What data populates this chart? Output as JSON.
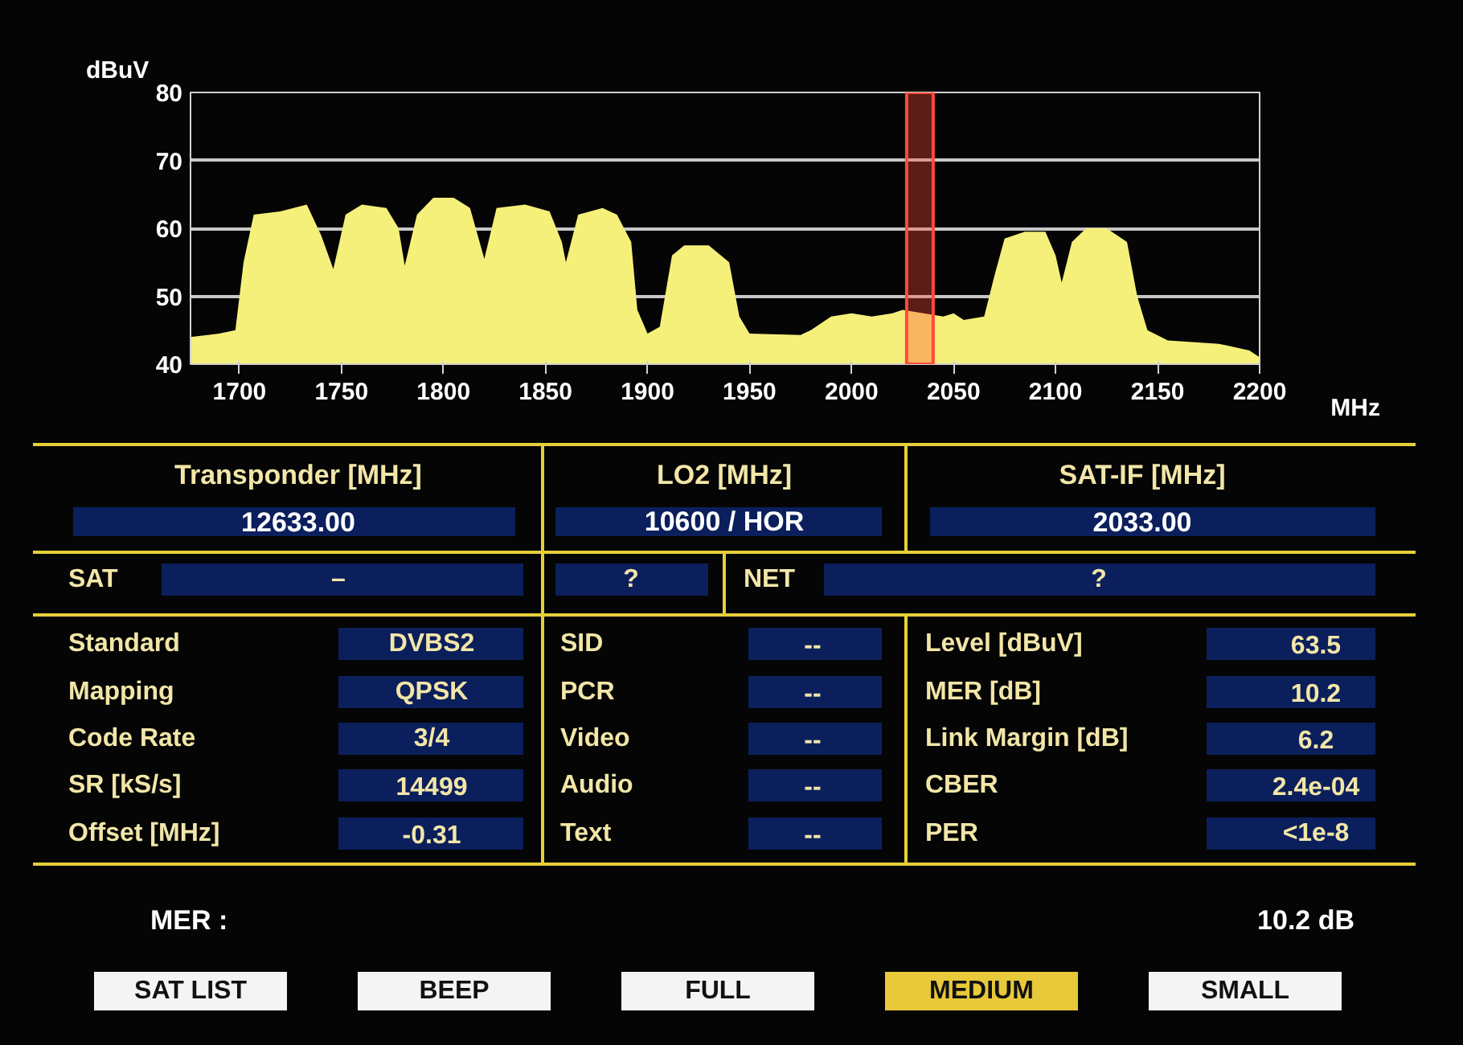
{
  "chart_data": [
    {
      "type": "area",
      "ylabel": "dBuV",
      "xlabel": "MHz",
      "x": [
        1676,
        1690,
        1698,
        1702,
        1707,
        1720,
        1733,
        1740,
        1746,
        1752,
        1760,
        1772,
        1778,
        1781,
        1787,
        1795,
        1805,
        1813,
        1820,
        1826,
        1840,
        1852,
        1858,
        1860,
        1866,
        1878,
        1885,
        1892,
        1895,
        1900,
        1906,
        1912,
        1918,
        1930,
        1940,
        1945,
        1950,
        1975,
        1980,
        1990,
        2000,
        2010,
        2020,
        2025,
        2045,
        2050,
        2055,
        2065,
        2070,
        2075,
        2085,
        2095,
        2100,
        2103,
        2108,
        2115,
        2125,
        2135,
        2140,
        2145,
        2155,
        2180,
        2195,
        2200
      ],
      "values": [
        44,
        44.5,
        45,
        55,
        62,
        62.5,
        63.5,
        59,
        54,
        62,
        63.5,
        63,
        60,
        54.5,
        62,
        64.5,
        64.5,
        63,
        55.5,
        63,
        63.5,
        62.5,
        58,
        55,
        62,
        63,
        62,
        58,
        48,
        44.5,
        45.5,
        56,
        57.5,
        57.5,
        55,
        47,
        44.5,
        44.3,
        45,
        47,
        47.5,
        47,
        47.5,
        48,
        47,
        47.5,
        46.5,
        47,
        53,
        58.5,
        59.5,
        59.5,
        56,
        52,
        58,
        60,
        60,
        58,
        50,
        45,
        43.5,
        43,
        42,
        41
      ],
      "color": "#f5f07a",
      "xlim": [
        1676,
        2200
      ],
      "ylim": [
        40,
        80
      ],
      "xticks": [
        1700,
        1750,
        1800,
        1850,
        1900,
        1950,
        2000,
        2050,
        2100,
        2150,
        2200
      ],
      "yticks": [
        40,
        50,
        60,
        70,
        80
      ],
      "grid": "y",
      "bands": [
        {
          "axis": "x",
          "from": 2027,
          "to": 2040,
          "color": "#ff4a3a"
        }
      ]
    },
    {
      "type": "other",
      "annotations": [
        "Transponder [MHz]",
        "12633.00",
        "LO2 [MHz]",
        "10600 / HOR",
        "SAT-IF [MHz]",
        "2033.00",
        "SAT",
        "–",
        "?",
        "NET",
        "?",
        "Standard",
        "DVBS2",
        "SID",
        "--",
        "Level [dBuV]",
        "63.5",
        "Mapping",
        "QPSK",
        "PCR",
        "--",
        "MER [dB]",
        "10.2",
        "Code Rate",
        "3/4",
        "Video",
        "--",
        "Link Margin [dB]",
        "6.2",
        "SR [kS/s]",
        "14499",
        "Audio",
        "--",
        "CBER",
        "2.4e-04",
        "Offset [MHz]",
        "-0.31",
        "Text",
        "--",
        "PER",
        "<1e-8",
        "MER :",
        "10.2 dB",
        "SAT LIST",
        "BEEP",
        "FULL",
        "MEDIUM",
        "SMALL"
      ]
    }
  ]
}
